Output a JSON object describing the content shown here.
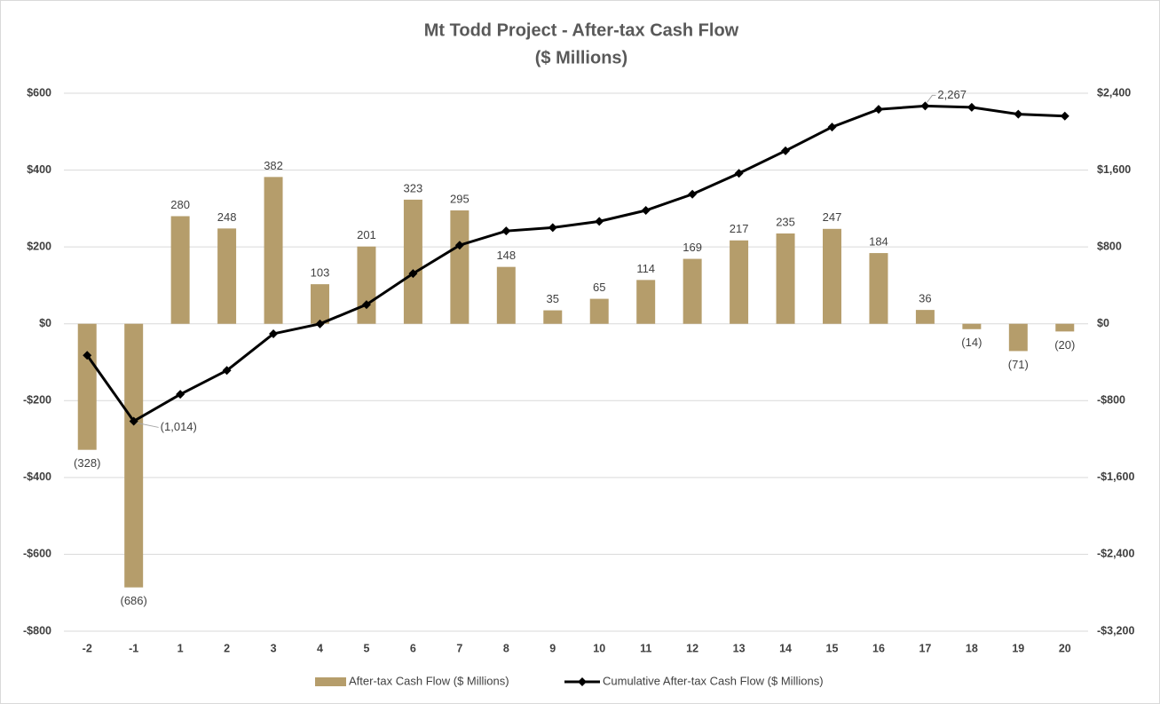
{
  "chart_data": {
    "type": "bar",
    "title": "Mt Todd Project - After-tax Cash Flow",
    "subtitle": "($ Millions)",
    "categories": [
      "-2",
      "-1",
      "1",
      "2",
      "3",
      "4",
      "5",
      "6",
      "7",
      "8",
      "9",
      "10",
      "11",
      "12",
      "13",
      "14",
      "15",
      "16",
      "17",
      "18",
      "19",
      "20"
    ],
    "series": [
      {
        "name": "After-tax Cash Flow ($ Millions)",
        "type": "bar",
        "color": "#b59d6b",
        "values": [
          -328,
          -686,
          280,
          248,
          382,
          103,
          201,
          323,
          295,
          148,
          35,
          65,
          114,
          169,
          217,
          235,
          247,
          184,
          36,
          -14,
          -71,
          -20
        ],
        "value_labels": [
          "(328)",
          "(686)",
          "280",
          "248",
          "382",
          "103",
          "201",
          "323",
          "295",
          "148",
          "35",
          "65",
          "114",
          "169",
          "217",
          "235",
          "247",
          "184",
          "36",
          "(14)",
          "(71)",
          "(20)"
        ]
      },
      {
        "name": "Cumulative After-tax Cash Flow ($ Millions)",
        "type": "line",
        "axis": "y2",
        "color": "#000000",
        "values": [
          -328,
          -1014,
          -734,
          -486,
          -104,
          -1,
          200,
          523,
          818,
          966,
          1001,
          1066,
          1180,
          1349,
          1566,
          1801,
          2048,
          2232,
          2267,
          2253,
          2182,
          2162
        ],
        "value_labels": [
          null,
          "(1,014)",
          null,
          null,
          null,
          null,
          null,
          null,
          null,
          null,
          null,
          null,
          null,
          null,
          null,
          null,
          null,
          null,
          "2,267",
          null,
          null,
          null
        ]
      }
    ],
    "ylim": [
      -800,
      600
    ],
    "yticks": [
      {
        "value": -800,
        "label": "-$800"
      },
      {
        "value": -600,
        "label": "-$600"
      },
      {
        "value": -400,
        "label": "-$400"
      },
      {
        "value": -200,
        "label": "-$200"
      },
      {
        "value": 0,
        "label": "$0"
      },
      {
        "value": 200,
        "label": "$200"
      },
      {
        "value": 400,
        "label": "$400"
      },
      {
        "value": 600,
        "label": "$600"
      }
    ],
    "y2lim": [
      -3200,
      2400
    ],
    "y2ticks": [
      {
        "value": -3200,
        "label": "-$3,200"
      },
      {
        "value": -2400,
        "label": "-$2,400"
      },
      {
        "value": -1600,
        "label": "-$1,600"
      },
      {
        "value": -800,
        "label": "-$800"
      },
      {
        "value": 0,
        "label": "$0"
      },
      {
        "value": 800,
        "label": "$800"
      },
      {
        "value": 1600,
        "label": "$1,600"
      },
      {
        "value": 2400,
        "label": "$2,400"
      }
    ],
    "grid": true
  }
}
